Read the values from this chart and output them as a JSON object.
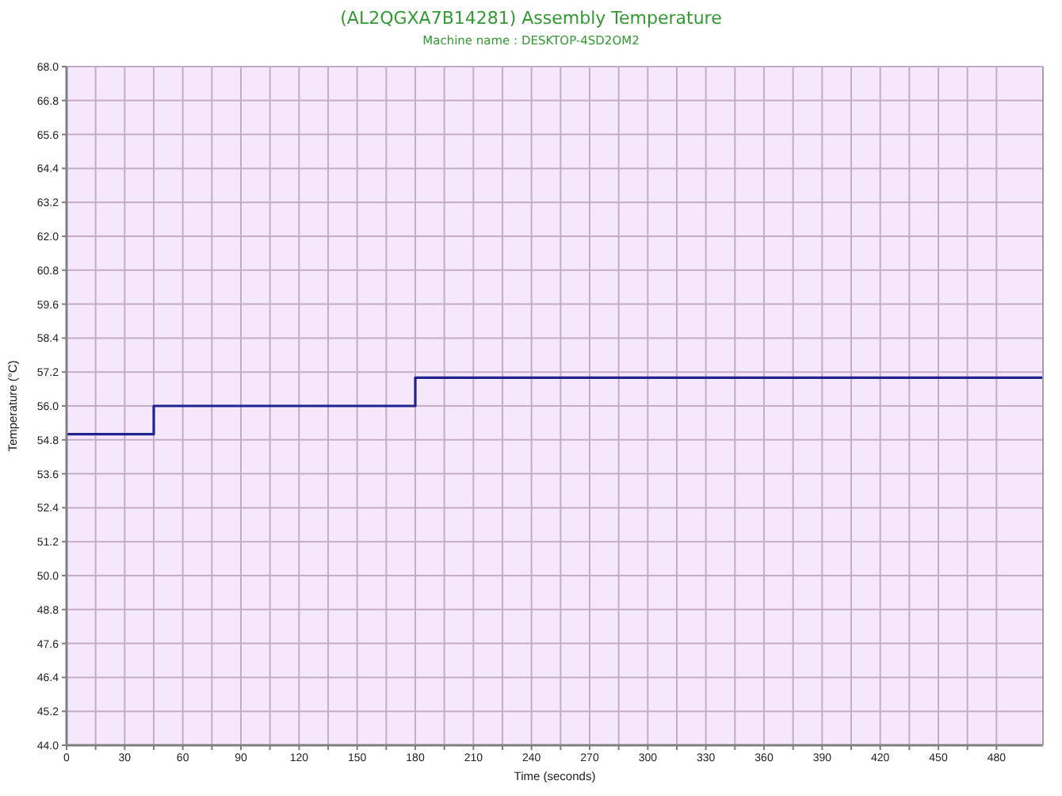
{
  "chart_data": {
    "type": "step",
    "title": "(AL2QGXA7B14281) Assembly Temperature",
    "subtitle": "Machine name : DESKTOP-4SD2OM2",
    "xlabel": "Time (seconds)",
    "ylabel": "Temperature (°C)",
    "x": [
      0,
      45,
      180,
      504
    ],
    "series": [
      {
        "color": "#22228b",
        "values": [
          55,
          56,
          57,
          57
        ]
      }
    ],
    "xlim": [
      0,
      504
    ],
    "xticks": [
      0,
      {
        "value": 15,
        "label": null
      },
      30,
      {
        "value": 45,
        "label": null
      },
      60,
      {
        "value": 75,
        "label": null
      },
      90,
      {
        "value": 105,
        "label": null
      },
      120,
      {
        "value": 135,
        "label": null
      },
      150,
      {
        "value": 165,
        "label": null
      },
      180,
      {
        "value": 195,
        "label": null
      },
      210,
      {
        "value": 225,
        "label": null
      },
      240,
      {
        "value": 255,
        "label": null
      },
      270,
      {
        "value": 285,
        "label": null
      },
      300,
      {
        "value": 315,
        "label": null
      },
      330,
      {
        "value": 345,
        "label": null
      },
      360,
      {
        "value": 375,
        "label": null
      },
      390,
      {
        "value": 405,
        "label": null
      },
      420,
      {
        "value": 435,
        "label": null
      },
      450,
      {
        "value": 465,
        "label": null
      },
      480
    ],
    "ylim": [
      44,
      68
    ],
    "yticks": [
      {
        "value": 44,
        "label": "44.0"
      },
      45.2,
      46.4,
      47.6,
      48.8,
      {
        "value": 50,
        "label": "50.0"
      },
      51.2,
      52.4,
      53.6,
      54.8,
      {
        "value": 56,
        "label": "56.0"
      },
      57.2,
      58.4,
      59.6,
      60.8,
      {
        "value": 62,
        "label": "62.0"
      },
      63.2,
      64.4,
      65.6,
      66.8,
      {
        "value": 68,
        "label": "68.0"
      }
    ],
    "grid": true
  }
}
